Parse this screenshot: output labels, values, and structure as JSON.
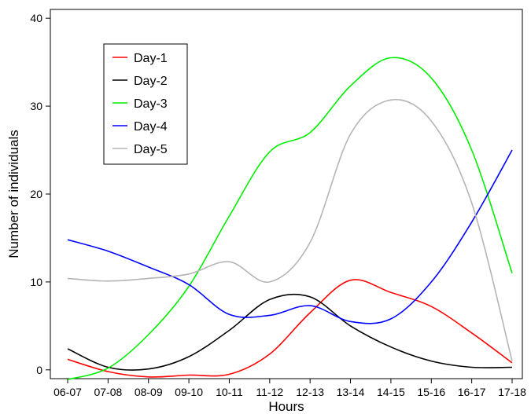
{
  "chart_data": {
    "type": "line",
    "title": "",
    "xlabel": "Hours",
    "ylabel": "Number of individuals",
    "categories": [
      "06-07",
      "07-08",
      "08-09",
      "09-10",
      "10-11",
      "11-12",
      "12-13",
      "13-14",
      "14-15",
      "15-16",
      "16-17",
      "17-18"
    ],
    "ylim": [
      -1,
      41
    ],
    "yticks": [
      0,
      10,
      20,
      30,
      40
    ],
    "grid": false,
    "legend_position": "top-left",
    "series": [
      {
        "name": "Day-1",
        "color": "#ff0000",
        "values": [
          1.2,
          -0.2,
          -0.8,
          -0.6,
          -0.5,
          1.8,
          6.5,
          10.2,
          8.8,
          7.2,
          4.2,
          0.8
        ]
      },
      {
        "name": "Day-2",
        "color": "#000000",
        "values": [
          2.4,
          0.3,
          0.1,
          1.5,
          4.5,
          8.0,
          8.3,
          5.0,
          2.6,
          1.0,
          0.3,
          0.3
        ]
      },
      {
        "name": "Day-3",
        "color": "#00ee00",
        "values": [
          -1.1,
          0.2,
          4.0,
          9.5,
          17.5,
          24.8,
          27.0,
          32.3,
          35.5,
          33.2,
          25.0,
          11.0
        ]
      },
      {
        "name": "Day-4",
        "color": "#0000ff",
        "values": [
          14.8,
          13.5,
          11.7,
          9.7,
          6.3,
          6.2,
          7.3,
          5.5,
          5.8,
          10.0,
          16.8,
          25.0
        ]
      },
      {
        "name": "Day-5",
        "color": "#b5b5b5",
        "values": [
          10.4,
          10.1,
          10.4,
          10.9,
          12.3,
          10.0,
          14.5,
          26.8,
          30.7,
          28.3,
          19.0,
          1.0
        ]
      }
    ]
  }
}
